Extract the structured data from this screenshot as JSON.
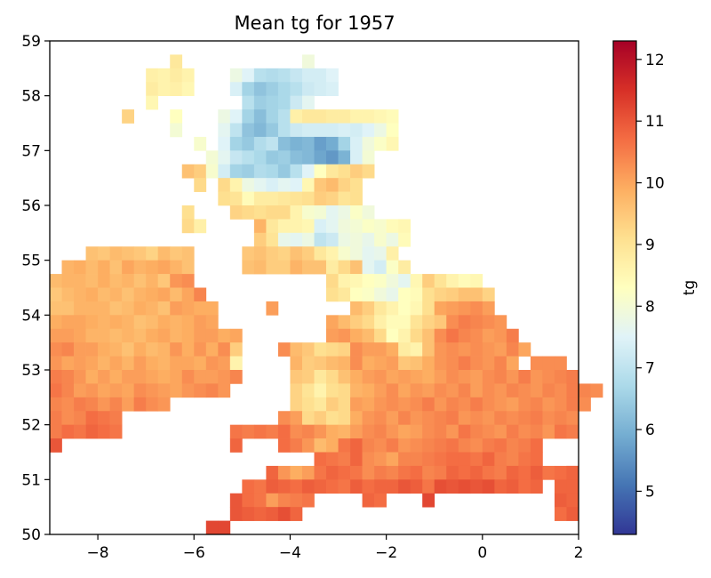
{
  "chart_data": {
    "type": "heatmap",
    "title": "Mean tg for 1957",
    "xlabel": "",
    "ylabel": "",
    "xlim": [
      -9,
      2
    ],
    "ylim": [
      50,
      59
    ],
    "x_ticks": [
      -8,
      -6,
      -4,
      -2,
      0,
      2
    ],
    "x_tick_labels": [
      "−8",
      "−6",
      "−4",
      "−2",
      "0",
      "2"
    ],
    "y_ticks": [
      50,
      51,
      52,
      53,
      54,
      55,
      56,
      57,
      58,
      59
    ],
    "y_tick_labels": [
      "50",
      "51",
      "52",
      "53",
      "54",
      "55",
      "56",
      "57",
      "58",
      "59"
    ],
    "colorbar": {
      "label": "tg",
      "vmin": 4.3,
      "vmax": 12.3,
      "ticks": [
        5,
        6,
        7,
        8,
        9,
        10,
        11,
        12
      ],
      "tick_labels": [
        "5",
        "6",
        "7",
        "8",
        "9",
        "10",
        "11",
        "12"
      ],
      "colormap": "RdYlBu_r"
    },
    "grid": false,
    "cell_size_deg": [
      0.25,
      0.25
    ],
    "cells": [
      {
        "lat": 58.5,
        "lon_start": -6.5,
        "values": [
          8.9
        ]
      },
      {
        "lat": 58.5,
        "lon_start": -3.75,
        "values": [
          7.9
        ]
      },
      {
        "lat": 58.25,
        "lon_start": -7.0,
        "values": [
          8.7,
          8.6,
          8.8,
          8.6
        ]
      },
      {
        "lat": 58.25,
        "lon_start": -5.25,
        "values": [
          7.8,
          7.5,
          6.9,
          6.8,
          6.9,
          7.1,
          7.3,
          7.3,
          7.5
        ]
      },
      {
        "lat": 58.0,
        "lon_start": -7.0,
        "values": [
          8.8,
          8.6,
          8.7,
          8.5
        ]
      },
      {
        "lat": 58.0,
        "lon_start": -5.25,
        "values": [
          7.4,
          6.6,
          6.3,
          6.5,
          6.7,
          6.9,
          7.2,
          7.3,
          7.4
        ]
      },
      {
        "lat": 57.75,
        "lon_start": -7.0,
        "values": [
          8.5
        ]
      },
      {
        "lat": 57.75,
        "lon_start": -5.0,
        "values": [
          6.9,
          6.5,
          6.6,
          6.7,
          7.2,
          7.6
        ]
      },
      {
        "lat": 57.5,
        "lon_start": -7.5,
        "values": [
          9.3
        ]
      },
      {
        "lat": 57.5,
        "lon_start": -6.5,
        "values": [
          8.3
        ]
      },
      {
        "lat": 57.5,
        "lon_start": -5.5,
        "values": [
          7.8,
          7.5,
          6.6,
          6.2,
          6.6,
          6.9,
          8.7,
          8.9,
          8.9,
          8.8,
          8.8,
          8.6,
          8.6,
          8.5,
          8.4
        ]
      },
      {
        "lat": 57.25,
        "lon_start": -6.5,
        "values": [
          8.0
        ]
      },
      {
        "lat": 57.25,
        "lon_start": -5.5,
        "values": [
          7.6,
          7.0,
          6.3,
          6.1,
          6.4,
          6.9,
          7.2,
          7.3,
          7.3,
          7.3,
          7.4,
          7.3,
          7.5,
          7.8,
          8.3
        ]
      },
      {
        "lat": 57.0,
        "lon_start": -6.0,
        "values": [
          8.1
        ]
      },
      {
        "lat": 57.0,
        "lon_start": -5.5,
        "values": [
          7.5,
          6.6,
          6.4,
          6.8,
          7.0,
          6.2,
          6.0,
          6.1,
          5.7,
          5.9,
          6.6,
          7.4,
          7.9,
          8.2,
          8.5
        ]
      },
      {
        "lat": 56.75,
        "lon_start": -5.75,
        "values": [
          8.0,
          7.6,
          7.1,
          6.9,
          6.7,
          6.4,
          6.5,
          6.2,
          6.1,
          5.8,
          5.6,
          6.0,
          7.4,
          8.0
        ]
      },
      {
        "lat": 56.5,
        "lon_start": -6.25,
        "values": [
          9.6,
          9.4,
          8.1,
          7.3,
          6.6,
          6.5,
          6.8,
          6.7,
          6.4,
          6.9,
          7.5,
          8.3,
          8.9,
          9.1,
          9.4,
          9.2
        ]
      },
      {
        "lat": 56.25,
        "lon_start": -6.0,
        "values": [
          9.2
        ]
      },
      {
        "lat": 56.25,
        "lon_start": -5.5,
        "values": [
          9.2,
          8.6,
          7.8,
          7.6,
          7.4,
          7.6,
          7.5,
          8.5,
          9.5,
          9.7,
          9.3,
          9.1
        ]
      },
      {
        "lat": 56.0,
        "lon_start": -5.5,
        "values": [
          9.1,
          9.0,
          8.4,
          8.8,
          8.8,
          8.9,
          9.0,
          9.1,
          9.4,
          9.3,
          9.0,
          9.1
        ]
      },
      {
        "lat": 55.75,
        "lon_start": -6.25,
        "values": [
          9.1
        ]
      },
      {
        "lat": 55.75,
        "lon_start": -5.25,
        "values": [
          9.3,
          9.2,
          9.1,
          9.2,
          9.2,
          8.6,
          8.1,
          8.0,
          7.6,
          7.8,
          8.2,
          7.9
        ]
      },
      {
        "lat": 55.5,
        "lon_start": -6.25,
        "values": [
          9.2,
          8.7
        ]
      },
      {
        "lat": 55.5,
        "lon_start": -4.75,
        "values": [
          9.8,
          8.9,
          8.6,
          8.6,
          8.5,
          7.4,
          7.6,
          7.9,
          8.0,
          8.2,
          8.1,
          8.4,
          8.5
        ]
      },
      {
        "lat": 55.25,
        "lon_start": -4.75,
        "values": [
          9.4,
          9.0,
          7.7,
          7.6,
          7.8,
          7.0,
          7.2,
          7.8,
          7.9,
          7.7,
          8.1,
          7.8,
          8.4
        ]
      },
      {
        "lat": 55.0,
        "lon_start": -8.25,
        "values": [
          9.6,
          9.5,
          9.7,
          9.6,
          9.5,
          9.3,
          9.7,
          9.5,
          9.6
        ]
      },
      {
        "lat": 55.0,
        "lon_start": -5.0,
        "values": [
          9.5,
          9.6,
          9.4,
          9.3,
          9.6,
          9.4,
          8.9,
          8.6,
          8.1,
          7.9,
          7.6,
          7.7,
          8.7
        ]
      },
      {
        "lat": 54.75,
        "lon_start": -8.75,
        "values": [
          9.8,
          9.9,
          9.7,
          9.9,
          9.6,
          10.0,
          9.8,
          9.9,
          10.0,
          9.8,
          9.6
        ]
      },
      {
        "lat": 54.75,
        "lon_start": -5.0,
        "values": [
          9.6,
          9.7,
          9.4,
          9.4,
          9.8,
          9.6,
          9.6,
          8.8,
          9.2,
          9.6,
          7.6,
          7.3,
          8.2,
          8.8
        ]
      },
      {
        "lat": 54.5,
        "lon_start": -9.0,
        "values": [
          9.7,
          9.8,
          9.8,
          9.7,
          9.9,
          9.7,
          9.8,
          9.6,
          9.8,
          9.5,
          10.2,
          10.3
        ]
      },
      {
        "lat": 54.5,
        "lon_start": -3.25,
        "values": [
          9.2,
          8.6,
          8.5,
          8.3,
          8.2,
          7.9,
          7.6,
          8.5,
          9.4,
          9.0,
          8.6,
          8.4,
          8.5
        ]
      },
      {
        "lat": 54.25,
        "lon_start": -9.0,
        "values": [
          9.5,
          9.7,
          9.8,
          9.9,
          9.7,
          9.8,
          9.6,
          9.8,
          9.9,
          10.0,
          9.7,
          10.0,
          10.4
        ]
      },
      {
        "lat": 54.25,
        "lon_start": -3.25,
        "values": [
          9.1,
          8.9,
          8.3,
          8.2,
          7.9,
          7.7,
          8.3,
          8.4,
          9.1,
          9.3,
          9.4,
          9.6,
          9.6,
          9.3
        ]
      },
      {
        "lat": 54.0,
        "lon_start": -9.0,
        "values": [
          9.6,
          9.6,
          9.8,
          9.8,
          9.8,
          9.6,
          9.7,
          9.9,
          9.8,
          9.6,
          10.1,
          10.0,
          9.9,
          9.9
        ]
      },
      {
        "lat": 54.0,
        "lon_start": -4.5,
        "values": [
          10.1
        ]
      },
      {
        "lat": 54.0,
        "lon_start": -2.75,
        "values": [
          9.7,
          9.4,
          8.9,
          8.6,
          8.3,
          8.5,
          9.1,
          10.0,
          10.1,
          10.2,
          10.3,
          10.1
        ]
      },
      {
        "lat": 53.75,
        "lon_start": -9.0,
        "values": [
          9.9,
          10.0,
          10.0,
          9.9,
          9.8,
          9.9,
          9.8,
          9.6,
          9.7,
          9.9,
          9.8,
          9.9,
          10.1,
          10.0
        ]
      },
      {
        "lat": 53.75,
        "lon_start": -3.25,
        "values": [
          10.0,
          9.7,
          9.4,
          9.2,
          8.7,
          8.4,
          8.4,
          9.0,
          9.3,
          9.5,
          10.3,
          10.5,
          10.4,
          10.3,
          10.2
        ]
      },
      {
        "lat": 53.5,
        "lon_start": -9.0,
        "values": [
          10.1,
          10.1,
          10.0,
          9.8,
          9.8,
          9.7,
          9.8,
          9.7,
          9.9,
          10.0,
          9.8,
          9.9,
          10.1,
          10.1,
          9.9,
          10.0
        ]
      },
      {
        "lat": 53.5,
        "lon_start": -3.25,
        "values": [
          10.1,
          10.2,
          9.9,
          9.7,
          9.2,
          8.3,
          8.6,
          9.2,
          9.6,
          10.3,
          10.6,
          10.4,
          10.3,
          10.1,
          10.2,
          10.5
        ]
      },
      {
        "lat": 53.25,
        "lon_start": -9.0,
        "values": [
          10.3,
          10.4,
          10.1,
          10.1,
          9.9,
          9.8,
          9.6,
          9.9,
          9.7,
          9.8,
          10.2,
          9.9,
          10.2,
          9.9,
          10.3,
          9.4
        ]
      },
      {
        "lat": 53.25,
        "lon_start": -4.25,
        "values": [
          10.3,
          9.7,
          9.5,
          9.1,
          9.2,
          9.3,
          10.3,
          10.1,
          10.1,
          9.9,
          8.8,
          8.6,
          9.6,
          10.2,
          10.3,
          10.2,
          10.3,
          10.2,
          10.1,
          10.4,
          10.0
        ]
      },
      {
        "lat": 53.0,
        "lon_start": -9.0,
        "values": [
          10.2,
          10.0,
          10.1,
          10.0,
          9.8,
          10.0,
          9.8,
          10.1,
          9.9,
          9.8,
          10.0,
          10.0,
          9.9,
          10.2,
          10.1,
          8.6
        ]
      },
      {
        "lat": 53.0,
        "lon_start": -4.0,
        "values": [
          9.8,
          9.4,
          9.5,
          9.7,
          9.8,
          10.3,
          9.9,
          10.0,
          10.1,
          9.5,
          9.6,
          9.9,
          10.2,
          10.3,
          10.5,
          10.3,
          10.2,
          10.4,
          10.0
        ]
      },
      {
        "lat": 53.0,
        "lon_start": 1.0,
        "values": [
          10.3,
          10.3,
          10.3
        ]
      },
      {
        "lat": 52.75,
        "lon_start": -9.0,
        "values": [
          10.5,
          10.4,
          10.2,
          9.9,
          10.1,
          9.9,
          10.1,
          10.1,
          10.0,
          9.9,
          10.0,
          10.3,
          10.1,
          10.1,
          10.2,
          10.4
        ]
      },
      {
        "lat": 52.75,
        "lon_start": -4.0,
        "values": [
          9.5,
          9.4,
          8.9,
          9.2,
          9.6,
          9.9,
          10.1,
          10.2,
          10.0,
          10.1,
          10.0,
          9.9,
          10.1,
          10.3,
          10.2,
          10.1,
          10.3,
          10.4,
          10.2,
          10.5,
          10.2,
          10.3,
          10.4,
          10.5
        ]
      },
      {
        "lat": 52.5,
        "lon_start": -9.0,
        "values": [
          10.6,
          10.4,
          10.1,
          10.2,
          10.0,
          10.1,
          10.0,
          10.3,
          10.2,
          10.1,
          10.0,
          10.2,
          10.3,
          10.4,
          10.2
        ]
      },
      {
        "lat": 52.5,
        "lon_start": -4.0,
        "values": [
          9.3,
          9.0,
          8.6,
          9.1,
          9.2,
          9.8,
          9.9,
          10.1,
          10.3,
          10.0,
          10.2,
          10.1,
          10.3,
          10.2,
          10.4,
          10.1,
          10.3,
          10.2,
          10.4,
          10.3,
          10.2,
          10.4,
          10.3,
          10.5,
          10.4,
          10.3
        ]
      },
      {
        "lat": 52.25,
        "lon_start": -9.0,
        "values": [
          10.4,
          10.3,
          10.5,
          10.4,
          10.2,
          10.4,
          10.1,
          10.5,
          10.3,
          10.2
        ]
      },
      {
        "lat": 52.25,
        "lon_start": -4.0,
        "values": [
          9.3,
          9.1,
          8.9,
          9.4,
          9.2,
          10.1,
          10.0,
          10.2,
          10.3,
          10.2,
          10.3,
          10.5,
          10.2,
          10.4,
          10.3,
          10.5,
          10.3,
          10.2,
          10.1,
          10.3,
          10.4,
          10.2,
          10.3,
          10.5,
          10.3
        ]
      },
      {
        "lat": 52.0,
        "lon_start": -9.0,
        "values": [
          10.5,
          10.3,
          10.4,
          10.7,
          10.6,
          10.5
        ]
      },
      {
        "lat": 52.0,
        "lon_start": -4.25,
        "values": [
          10.3,
          10.1,
          9.2,
          9.4,
          9.1,
          9.2,
          9.9,
          10.2,
          10.3,
          10.1,
          10.4,
          10.2,
          10.3,
          10.4,
          10.5,
          10.2,
          10.3,
          10.2,
          10.4,
          10.3,
          10.4,
          10.5,
          10.3,
          10.4,
          10.3
        ]
      },
      {
        "lat": 51.75,
        "lon_start": -9.0,
        "values": [
          10.5,
          10.7,
          10.6,
          10.8,
          10.7,
          10.6
        ]
      },
      {
        "lat": 51.75,
        "lon_start": -5.25,
        "values": [
          10.6,
          10.5,
          10.6,
          10.5,
          10.7,
          10.3,
          10.4,
          10.2,
          9.9,
          9.8,
          10.1,
          10.3,
          10.4,
          10.2,
          10.0,
          10.1,
          10.3,
          10.4,
          10.2,
          10.6,
          10.4,
          10.3,
          10.2,
          10.5,
          10.3,
          10.4,
          10.2,
          10.6,
          10.5
        ]
      },
      {
        "lat": 51.5,
        "lon_start": -9.0,
        "values": [
          11.0
        ]
      },
      {
        "lat": 51.5,
        "lon_start": -5.25,
        "values": [
          10.8
        ]
      },
      {
        "lat": 51.5,
        "lon_start": -4.25,
        "values": [
          10.7,
          10.5,
          10.2,
          9.7,
          9.9,
          10.6,
          10.8,
          10.4,
          10.3,
          10.5,
          10.2,
          10.3,
          10.4,
          10.5,
          10.6,
          10.4,
          10.3,
          10.5,
          10.6,
          10.4,
          10.5,
          10.7
        ]
      },
      {
        "lat": 51.25,
        "lon_start": -3.5,
        "values": [
          10.7,
          10.6,
          10.5,
          10.8,
          10.3,
          10.2,
          10.0,
          10.4,
          10.4,
          10.5,
          10.6,
          10.7,
          10.7,
          10.6,
          10.8,
          10.5,
          10.4,
          10.6,
          10.7
        ]
      },
      {
        "lat": 51.0,
        "lon_start": -4.5,
        "values": [
          10.8,
          10.2,
          9.9,
          10.1,
          10.6,
          10.8,
          10.7,
          10.6,
          10.3,
          10.5,
          10.4,
          10.6,
          10.7,
          10.4,
          10.5,
          10.8,
          10.7,
          10.8,
          10.6,
          10.5,
          10.8,
          10.7,
          10.9,
          10.6,
          10.7,
          10.8
        ]
      },
      {
        "lat": 51.0,
        "lon_start": 1.75,
        "values": [
          10.8
        ]
      },
      {
        "lat": 50.75,
        "lon_start": -5.0,
        "values": [
          10.7,
          10.6,
          10.9,
          10.8,
          10.7,
          10.9,
          10.8,
          10.7,
          10.6,
          10.9,
          10.7,
          10.8,
          10.8,
          11.0,
          10.9,
          10.6,
          11.1,
          11.0,
          11.1,
          11.0,
          11.1,
          10.8,
          10.9,
          10.7,
          10.8
        ]
      },
      {
        "lat": 50.75,
        "lon_start": 1.5,
        "values": [
          10.8,
          10.8
        ]
      },
      {
        "lat": 50.5,
        "lon_start": -5.25,
        "values": [
          11.0,
          10.7,
          10.6,
          10.1,
          10.4,
          10.5,
          10.6
        ]
      },
      {
        "lat": 50.5,
        "lon_start": -2.5,
        "values": [
          10.8,
          10.7
        ]
      },
      {
        "lat": 50.5,
        "lon_start": -1.25,
        "values": [
          11.2
        ]
      },
      {
        "lat": 50.5,
        "lon_start": 1.5,
        "values": [
          10.9,
          10.8
        ]
      },
      {
        "lat": 50.25,
        "lon_start": -5.25,
        "values": [
          11.0,
          10.9,
          10.8,
          10.9,
          11.1,
          10.8
        ]
      },
      {
        "lat": 50.25,
        "lon_start": 1.5,
        "values": [
          10.7,
          10.9
        ]
      },
      {
        "lat": 50.0,
        "lon_start": -5.75,
        "values": [
          11.2,
          11.2
        ]
      }
    ]
  }
}
